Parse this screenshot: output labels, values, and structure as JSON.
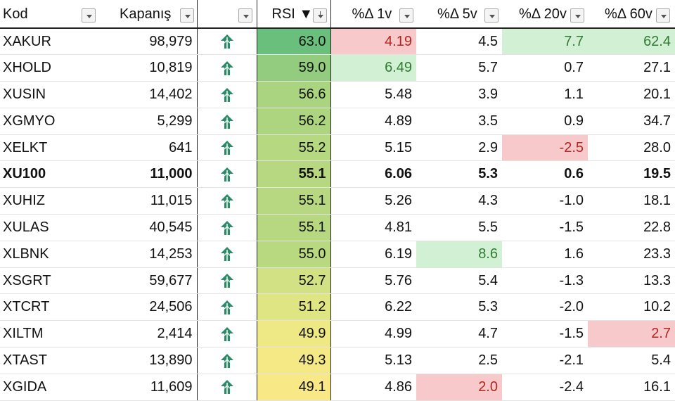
{
  "headers": {
    "kod": "Kod",
    "kapanis": "Kapanış",
    "rsi": "RSI",
    "rsi_sort": "▼",
    "d1": "%Δ 1v",
    "d5": "%Δ 5v",
    "d20": "%Δ 20v",
    "d60": "%Δ 60v"
  },
  "icons": {
    "trend": "green-up-arrow-icon",
    "filter": "filter-dropdown-icon"
  },
  "colors": {
    "rsi_high": "#63be7b",
    "rsi_mid": "#b6d87f",
    "rsi_low": "#fbe986",
    "neg_text": "#b3261e",
    "pos_text": "#2e7d32",
    "neg_fill": "#f8c9cb",
    "pos_fill": "#d2f0d3"
  },
  "rows": [
    {
      "kod": "XAKUR",
      "kapanis": "98,979",
      "rsi": "63.0",
      "rsi_bg": "#6bbf7c",
      "d1": "4.19",
      "d5": "4.5",
      "d20": "7.7",
      "d60": "62.4",
      "d1_hl": "red",
      "d20_hl": "green",
      "d60_hl": "green"
    },
    {
      "kod": "XHOLD",
      "kapanis": "10,819",
      "rsi": "59.0",
      "rsi_bg": "#93cc7e",
      "d1": "6.49",
      "d5": "5.7",
      "d20": "0.7",
      "d60": "27.1",
      "d1_hl": "green"
    },
    {
      "kod": "XUSIN",
      "kapanis": "14,402",
      "rsi": "56.6",
      "rsi_bg": "#aad47f",
      "d1": "5.48",
      "d5": "3.9",
      "d20": "1.1",
      "d60": "20.1"
    },
    {
      "kod": "XGMYO",
      "kapanis": "5,299",
      "rsi": "56.2",
      "rsi_bg": "#add580",
      "d1": "4.89",
      "d5": "3.5",
      "d20": "0.9",
      "d60": "34.7"
    },
    {
      "kod": "XELKT",
      "kapanis": "641",
      "rsi": "55.2",
      "rsi_bg": "#b6d880",
      "d1": "5.15",
      "d5": "2.9",
      "d20": "-2.5",
      "d60": "28.0",
      "d20_hl": "red"
    },
    {
      "kod": "XU100",
      "kapanis": "11,000",
      "rsi": "55.1",
      "rsi_bg": "#b7d880",
      "d1": "6.06",
      "d5": "5.3",
      "d20": "0.6",
      "d60": "19.5",
      "bold": true
    },
    {
      "kod": "XUHIZ",
      "kapanis": "11,015",
      "rsi": "55.1",
      "rsi_bg": "#b7d880",
      "d1": "5.26",
      "d5": "4.3",
      "d20": "-1.0",
      "d60": "18.1"
    },
    {
      "kod": "XULAS",
      "kapanis": "40,545",
      "rsi": "55.1",
      "rsi_bg": "#b7d880",
      "d1": "4.81",
      "d5": "5.5",
      "d20": "-1.5",
      "d60": "22.8"
    },
    {
      "kod": "XLBNK",
      "kapanis": "14,253",
      "rsi": "55.0",
      "rsi_bg": "#b8d980",
      "d1": "6.19",
      "d5": "8.6",
      "d20": "1.6",
      "d60": "23.3",
      "d5_hl": "green"
    },
    {
      "kod": "XSGRT",
      "kapanis": "59,677",
      "rsi": "52.7",
      "rsi_bg": "#d1e183",
      "d1": "5.76",
      "d5": "5.4",
      "d20": "-1.3",
      "d60": "13.3"
    },
    {
      "kod": "XTCRT",
      "kapanis": "24,506",
      "rsi": "51.2",
      "rsi_bg": "#e0e584",
      "d1": "6.22",
      "d5": "5.3",
      "d20": "-2.0",
      "d60": "10.2"
    },
    {
      "kod": "XILTM",
      "kapanis": "2,414",
      "rsi": "49.9",
      "rsi_bg": "#eee885",
      "d1": "4.99",
      "d5": "4.7",
      "d20": "-1.5",
      "d60": "2.7",
      "d60_hl": "red"
    },
    {
      "kod": "XTAST",
      "kapanis": "13,890",
      "rsi": "49.3",
      "rsi_bg": "#f5e986",
      "d1": "5.13",
      "d5": "2.5",
      "d20": "-2.1",
      "d60": "5.4"
    },
    {
      "kod": "XGIDA",
      "kapanis": "11,609",
      "rsi": "49.1",
      "rsi_bg": "#f8e986",
      "d1": "4.86",
      "d5": "2.0",
      "d20": "-2.4",
      "d60": "16.1",
      "d5_hl": "red"
    }
  ]
}
